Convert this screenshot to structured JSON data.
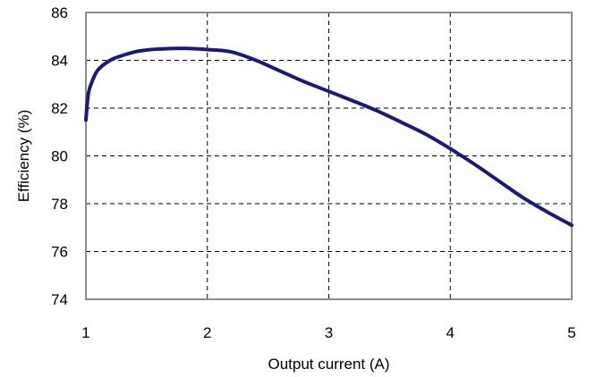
{
  "chart_data": {
    "type": "line",
    "title": "",
    "xlabel": "Output current (A)",
    "ylabel": "Efficiency (%)",
    "xlim": [
      1,
      5
    ],
    "ylim": [
      74,
      86
    ],
    "x_ticks": [
      "1",
      "2",
      "3",
      "4",
      "5"
    ],
    "y_ticks": [
      "74",
      "76",
      "78",
      "80",
      "82",
      "84",
      "86"
    ],
    "grid": true,
    "grid_style": "dashed",
    "series": [
      {
        "color": "#1a1a7a",
        "x": [
          1.0,
          1.02,
          1.05,
          1.1,
          1.2,
          1.3,
          1.4,
          1.5,
          1.6,
          1.8,
          2.0,
          2.2,
          2.4,
          2.6,
          2.8,
          3.0,
          3.2,
          3.4,
          3.6,
          3.8,
          4.0,
          4.2,
          4.4,
          4.6,
          4.8,
          5.0
        ],
        "y": [
          81.5,
          82.6,
          83.1,
          83.6,
          84.0,
          84.2,
          84.35,
          84.43,
          84.47,
          84.5,
          84.45,
          84.35,
          84.0,
          83.55,
          83.1,
          82.7,
          82.3,
          81.88,
          81.4,
          80.9,
          80.3,
          79.65,
          78.95,
          78.25,
          77.65,
          77.1
        ]
      }
    ]
  }
}
